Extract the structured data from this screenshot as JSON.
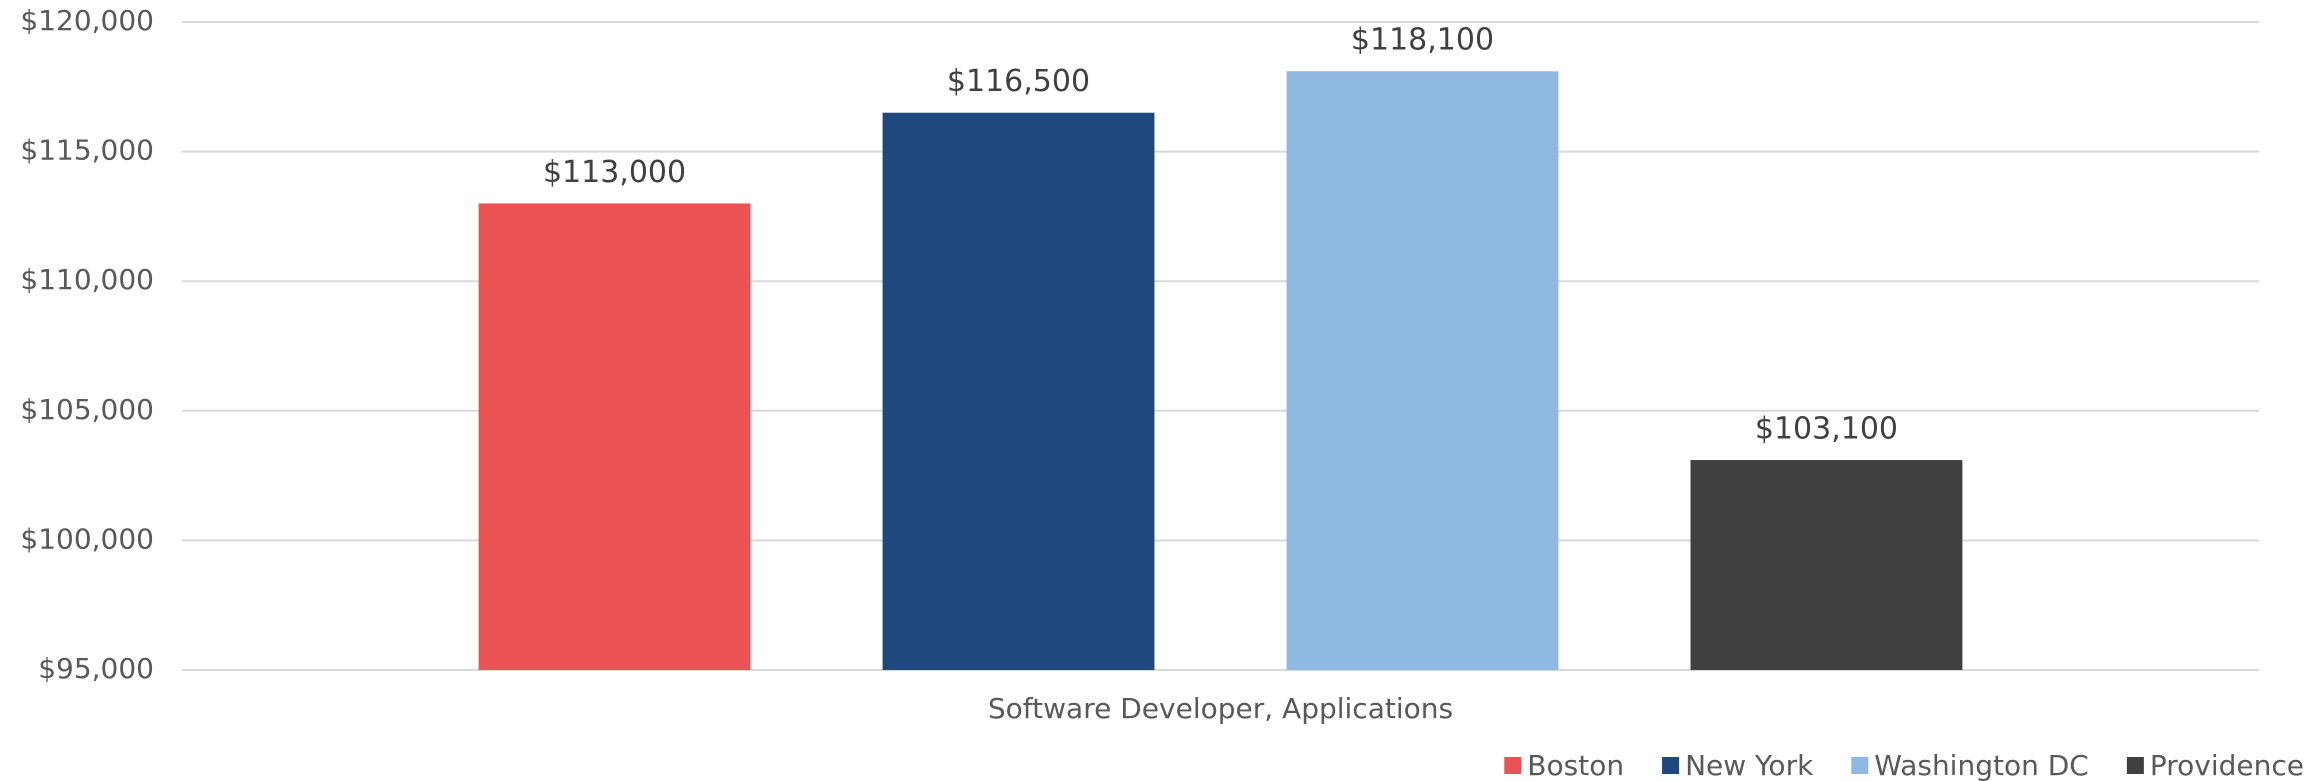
{
  "chart_data": {
    "type": "bar",
    "categories": [
      "Software Developer, Applications"
    ],
    "series": [
      {
        "name": "Boston",
        "color": "#eb5254",
        "values": [
          113000
        ],
        "value_labels": [
          "$113,000"
        ]
      },
      {
        "name": "New York",
        "color": "#1f497d",
        "values": [
          116500
        ],
        "value_labels": [
          "$116,500"
        ]
      },
      {
        "name": "Washington DC",
        "color": "#8fb9e3",
        "values": [
          118100
        ],
        "value_labels": [
          "$118,100"
        ]
      },
      {
        "name": "Providence",
        "color": "#404040",
        "values": [
          103100
        ],
        "value_labels": [
          "$103,100"
        ]
      }
    ],
    "ylim": [
      95000,
      120000
    ],
    "yticks": [
      {
        "value": 95000,
        "label": "$95,000"
      },
      {
        "value": 100000,
        "label": "$100,000"
      },
      {
        "value": 105000,
        "label": "$105,000"
      },
      {
        "value": 110000,
        "label": "$110,000"
      },
      {
        "value": 115000,
        "label": "$115,000"
      },
      {
        "value": 120000,
        "label": "$120,000"
      }
    ],
    "grid": true,
    "legend": "bottom-right"
  }
}
